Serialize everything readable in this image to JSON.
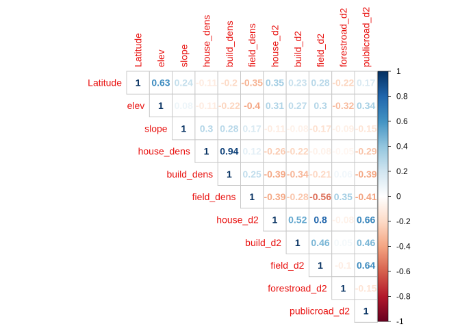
{
  "chart_data": {
    "type": "heatmap",
    "variables": [
      "Latitude",
      "elev",
      "slope",
      "house_dens",
      "build_dens",
      "field_dens",
      "house_d2",
      "build_d2",
      "field_d2",
      "forestroad_d2",
      "publicroad_d2"
    ],
    "matrix": [
      [
        1,
        0.63,
        0.24,
        -0.11,
        -0.2,
        -0.35,
        0.35,
        0.23,
        0.28,
        -0.22,
        0.17
      ],
      [
        null,
        1,
        0.08,
        -0.11,
        -0.22,
        -0.4,
        0.31,
        0.27,
        0.3,
        -0.32,
        0.34
      ],
      [
        null,
        null,
        1,
        0.3,
        0.28,
        0.17,
        -0.11,
        -0.08,
        -0.17,
        -0.09,
        -0.15
      ],
      [
        null,
        null,
        null,
        1,
        0.94,
        0.12,
        -0.26,
        -0.22,
        -0.08,
        -0.05,
        -0.29
      ],
      [
        null,
        null,
        null,
        null,
        1,
        0.25,
        -0.39,
        -0.34,
        -0.21,
        0.06,
        -0.39
      ],
      [
        null,
        null,
        null,
        null,
        null,
        1,
        -0.39,
        -0.28,
        -0.56,
        0.35,
        -0.41
      ],
      [
        null,
        null,
        null,
        null,
        null,
        null,
        1,
        0.52,
        0.8,
        -0.08,
        0.66
      ],
      [
        null,
        null,
        null,
        null,
        null,
        null,
        null,
        1,
        0.46,
        0.05,
        0.46
      ],
      [
        null,
        null,
        null,
        null,
        null,
        null,
        null,
        null,
        1,
        -0.1,
        0.64
      ],
      [
        null,
        null,
        null,
        null,
        null,
        null,
        null,
        null,
        null,
        1,
        -0.15
      ],
      [
        null,
        null,
        null,
        null,
        null,
        null,
        null,
        null,
        null,
        null,
        1
      ]
    ],
    "colorbar": {
      "ticks": [
        1,
        0.8,
        0.6,
        0.4,
        0.2,
        0,
        -0.2,
        -0.4,
        -0.6,
        -0.8,
        -1
      ],
      "tick_labels": [
        "1",
        "0.8",
        "0.6",
        "0.4",
        "0.2",
        "0",
        "-0.2",
        "-0.4",
        "-0.6",
        "-0.8",
        "-1"
      ],
      "range": [
        -1,
        1
      ]
    },
    "layout": "upper-triangle",
    "label_color": "#e8110f"
  }
}
